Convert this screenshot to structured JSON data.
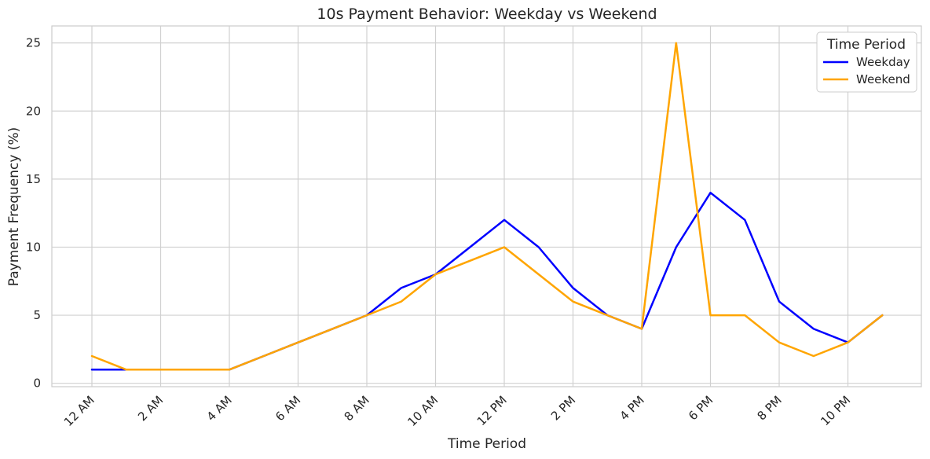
{
  "chart_data": {
    "type": "line",
    "title": "10s Payment Behavior: Weekday vs Weekend",
    "xlabel": "Time Period",
    "ylabel": "Payment Frequency (%)",
    "x": [
      "12 AM",
      "1 AM",
      "2 AM",
      "3 AM",
      "4 AM",
      "5 AM",
      "6 AM",
      "7 AM",
      "8 AM",
      "9 AM",
      "10 AM",
      "11 AM",
      "12 PM",
      "1 PM",
      "2 PM",
      "3 PM",
      "4 PM",
      "5 PM",
      "6 PM",
      "7 PM",
      "8 PM",
      "9 PM",
      "10 PM",
      "11 PM"
    ],
    "xticks": [
      "12 AM",
      "2 AM",
      "4 AM",
      "6 AM",
      "8 AM",
      "10 AM",
      "12 PM",
      "2 PM",
      "4 PM",
      "6 PM",
      "8 PM",
      "10 PM"
    ],
    "yticks": [
      0,
      5,
      10,
      15,
      20,
      25
    ],
    "ylim": [
      -0.25,
      26.25
    ],
    "grid": true,
    "legend": {
      "title": "Time Period",
      "position": "top-right"
    },
    "series": [
      {
        "name": "Weekday",
        "color": "#0000ff",
        "values": [
          1,
          1,
          1,
          1,
          1,
          2,
          3,
          4,
          5,
          7,
          8,
          10,
          12,
          10,
          7,
          5,
          4,
          10,
          14,
          12,
          6,
          4,
          3,
          5
        ]
      },
      {
        "name": "Weekend",
        "color": "#ffa500",
        "values": [
          2,
          1,
          1,
          1,
          1,
          2,
          3,
          4,
          5,
          6,
          8,
          9,
          10,
          8,
          6,
          5,
          4,
          25,
          5,
          5,
          3,
          2,
          3,
          5
        ]
      }
    ]
  }
}
